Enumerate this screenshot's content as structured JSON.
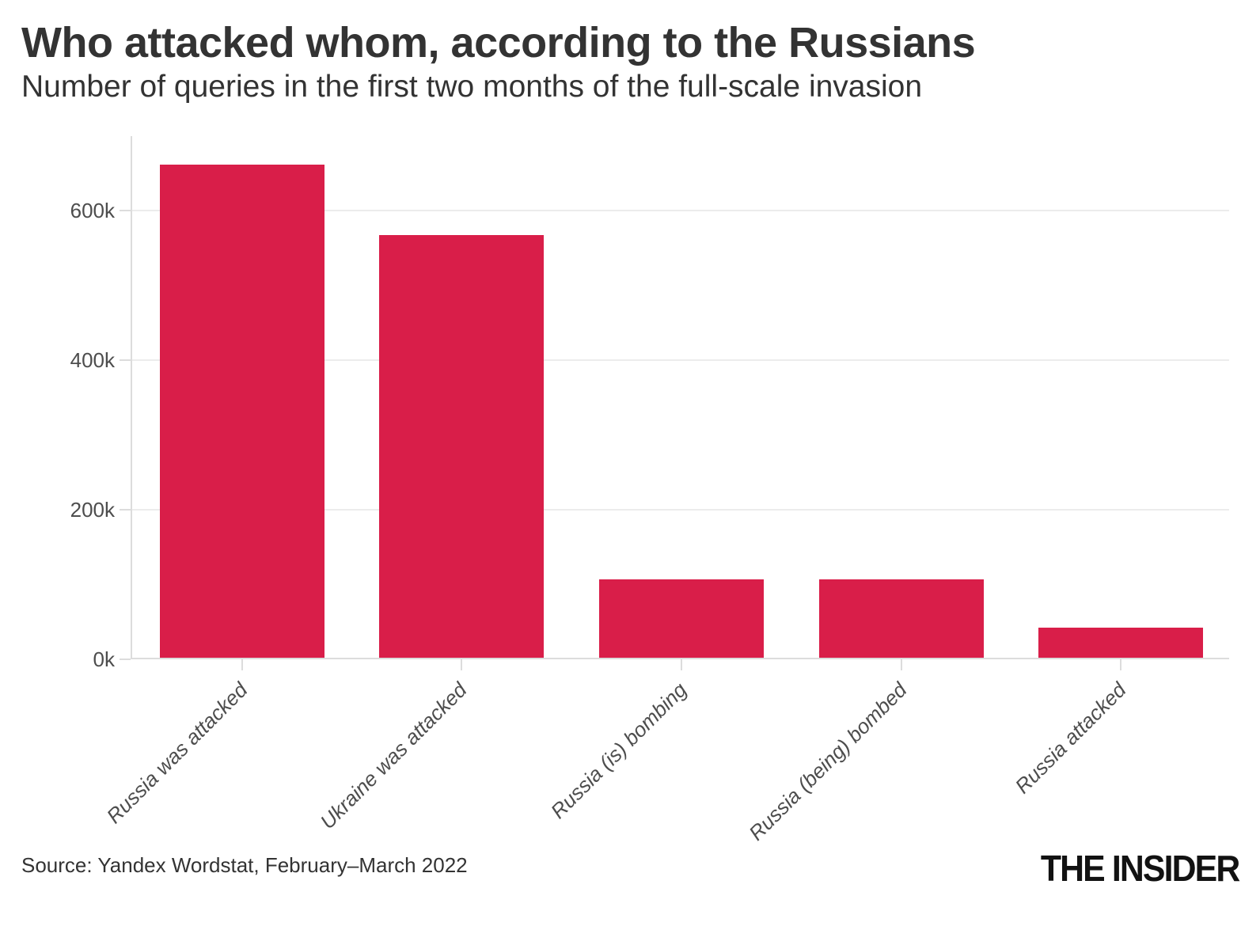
{
  "header": {
    "title": "Who attacked whom, according to the Russians",
    "subtitle": "Number of queries in the first two months of the full-scale invasion"
  },
  "chart_data": {
    "type": "bar",
    "title": "Who attacked whom, according to the Russians",
    "subtitle": "Number of queries in the first two months of the full-scale invasion",
    "categories": [
      "Russia was attacked",
      "Ukraine was attacked",
      "Russia (is) bombing",
      "Russia (being) bombed",
      "Russia attacked"
    ],
    "values": [
      660000,
      565000,
      105000,
      105000,
      40000
    ],
    "xlabel": "",
    "ylabel": "",
    "ylim": [
      0,
      700000
    ],
    "yticks": [
      {
        "value": 0,
        "label": "0k"
      },
      {
        "value": 200000,
        "label": "200k"
      },
      {
        "value": 400000,
        "label": "400k"
      },
      {
        "value": 600000,
        "label": "600k"
      }
    ],
    "grid": "horizontal-only",
    "legend": "none",
    "bar_color": "#D91E49",
    "x_label_rotation_deg": -45
  },
  "footer": {
    "source": "Source: Yandex Wordstat, February–March 2022",
    "logo": "THE INSIDER"
  }
}
